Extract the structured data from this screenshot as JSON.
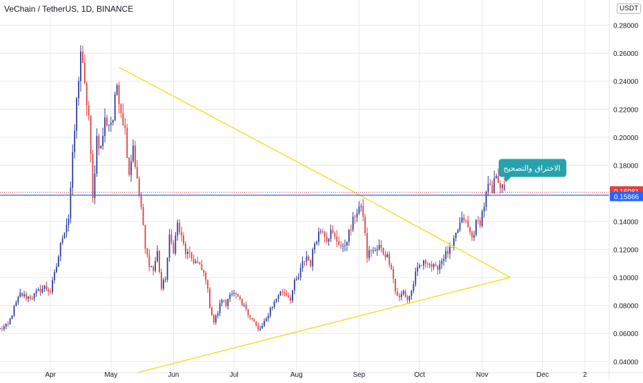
{
  "header": {
    "title": "VeChain / TetherUS, 1D, BINANCE",
    "currency": "USDT"
  },
  "annotation": {
    "text": "الاختراق والتصحيح"
  },
  "price_tags": {
    "current": "0.16081",
    "line": "0.15866"
  },
  "colors": {
    "up": "#2a3ea3",
    "down": "#e2403f",
    "trend": "#f2e13a",
    "hline": "#2962ff",
    "grid": "#e6e8ee",
    "callout": "#26a2ae",
    "current_tag": "#e2403f",
    "line_tag": "#2962ff"
  },
  "chart_data": {
    "type": "candlestick",
    "title": "VeChain / TetherUS, 1D, BINANCE",
    "ylim": [
      0.032,
      0.298
    ],
    "y_ticks": [
      "0.28000",
      "0.26000",
      "0.24000",
      "0.22000",
      "0.20000",
      "0.18000",
      "0.16000",
      "0.14000",
      "0.12000",
      "0.10000",
      "0.08000",
      "0.06000",
      "0.04000"
    ],
    "x_ticks": [
      {
        "label": "Apr",
        "day": 25
      },
      {
        "label": "May",
        "day": 55
      },
      {
        "label": "Jun",
        "day": 86
      },
      {
        "label": "Jul",
        "day": 116
      },
      {
        "label": "Aug",
        "day": 147
      },
      {
        "label": "Sep",
        "day": 178
      },
      {
        "label": "Oct",
        "day": 208
      },
      {
        "label": "Nov",
        "day": 239
      },
      {
        "label": "Dec",
        "day": 269
      },
      {
        "label": "2",
        "day": 290
      }
    ],
    "x_domain": [
      0,
      302
    ],
    "anchors": [
      [
        0,
        0.063
      ],
      [
        4,
        0.066
      ],
      [
        7,
        0.078
      ],
      [
        10,
        0.088
      ],
      [
        13,
        0.086
      ],
      [
        16,
        0.086
      ],
      [
        19,
        0.09
      ],
      [
        22,
        0.093
      ],
      [
        25,
        0.09
      ],
      [
        28,
        0.108
      ],
      [
        31,
        0.13
      ],
      [
        34,
        0.143
      ],
      [
        36,
        0.185
      ],
      [
        38,
        0.225
      ],
      [
        40,
        0.262
      ],
      [
        42,
        0.235
      ],
      [
        44,
        0.215
      ],
      [
        46,
        0.155
      ],
      [
        48,
        0.2
      ],
      [
        50,
        0.192
      ],
      [
        52,
        0.212
      ],
      [
        54,
        0.21
      ],
      [
        56,
        0.213
      ],
      [
        58,
        0.238
      ],
      [
        60,
        0.22
      ],
      [
        62,
        0.205
      ],
      [
        64,
        0.175
      ],
      [
        66,
        0.195
      ],
      [
        68,
        0.168
      ],
      [
        70,
        0.15
      ],
      [
        72,
        0.12
      ],
      [
        74,
        0.11
      ],
      [
        76,
        0.105
      ],
      [
        78,
        0.118
      ],
      [
        80,
        0.092
      ],
      [
        82,
        0.1
      ],
      [
        84,
        0.128
      ],
      [
        86,
        0.12
      ],
      [
        88,
        0.138
      ],
      [
        90,
        0.128
      ],
      [
        92,
        0.118
      ],
      [
        94,
        0.115
      ],
      [
        96,
        0.112
      ],
      [
        98,
        0.11
      ],
      [
        100,
        0.105
      ],
      [
        102,
        0.1
      ],
      [
        104,
        0.08
      ],
      [
        106,
        0.068
      ],
      [
        108,
        0.075
      ],
      [
        110,
        0.085
      ],
      [
        112,
        0.08
      ],
      [
        114,
        0.09
      ],
      [
        116,
        0.088
      ],
      [
        118,
        0.085
      ],
      [
        120,
        0.08
      ],
      [
        122,
        0.078
      ],
      [
        124,
        0.072
      ],
      [
        126,
        0.068
      ],
      [
        128,
        0.062
      ],
      [
        130,
        0.065
      ],
      [
        132,
        0.07
      ],
      [
        134,
        0.078
      ],
      [
        136,
        0.082
      ],
      [
        138,
        0.088
      ],
      [
        140,
        0.09
      ],
      [
        142,
        0.088
      ],
      [
        144,
        0.085
      ],
      [
        146,
        0.096
      ],
      [
        148,
        0.1
      ],
      [
        150,
        0.11
      ],
      [
        152,
        0.115
      ],
      [
        154,
        0.11
      ],
      [
        156,
        0.125
      ],
      [
        158,
        0.132
      ],
      [
        160,
        0.135
      ],
      [
        162,
        0.128
      ],
      [
        164,
        0.132
      ],
      [
        166,
        0.128
      ],
      [
        168,
        0.125
      ],
      [
        170,
        0.12
      ],
      [
        172,
        0.128
      ],
      [
        174,
        0.135
      ],
      [
        176,
        0.145
      ],
      [
        178,
        0.15
      ],
      [
        180,
        0.145
      ],
      [
        182,
        0.115
      ],
      [
        184,
        0.12
      ],
      [
        186,
        0.118
      ],
      [
        188,
        0.122
      ],
      [
        190,
        0.118
      ],
      [
        192,
        0.115
      ],
      [
        194,
        0.108
      ],
      [
        196,
        0.09
      ],
      [
        198,
        0.085
      ],
      [
        200,
        0.09
      ],
      [
        202,
        0.084
      ],
      [
        204,
        0.09
      ],
      [
        206,
        0.102
      ],
      [
        208,
        0.108
      ],
      [
        210,
        0.11
      ],
      [
        212,
        0.112
      ],
      [
        214,
        0.108
      ],
      [
        216,
        0.106
      ],
      [
        218,
        0.11
      ],
      [
        220,
        0.115
      ],
      [
        222,
        0.118
      ],
      [
        224,
        0.12
      ],
      [
        226,
        0.13
      ],
      [
        228,
        0.138
      ],
      [
        230,
        0.142
      ],
      [
        232,
        0.135
      ],
      [
        234,
        0.128
      ],
      [
        236,
        0.138
      ],
      [
        238,
        0.14
      ],
      [
        240,
        0.152
      ],
      [
        242,
        0.165
      ],
      [
        244,
        0.16
      ],
      [
        246,
        0.175
      ],
      [
        248,
        0.166
      ],
      [
        250,
        0.16
      ]
    ],
    "trendlines": [
      {
        "x": [
          59,
          178
        ],
        "y": [
          0.25,
          0.159
        ]
      },
      {
        "x": [
          178,
          253
        ],
        "y": [
          0.159,
          0.1
        ]
      },
      {
        "x": [
          68,
          253
        ],
        "y": [
          0.032,
          0.1
        ]
      }
    ],
    "horizontal_levels": [
      0.15866,
      0.16081
    ]
  }
}
